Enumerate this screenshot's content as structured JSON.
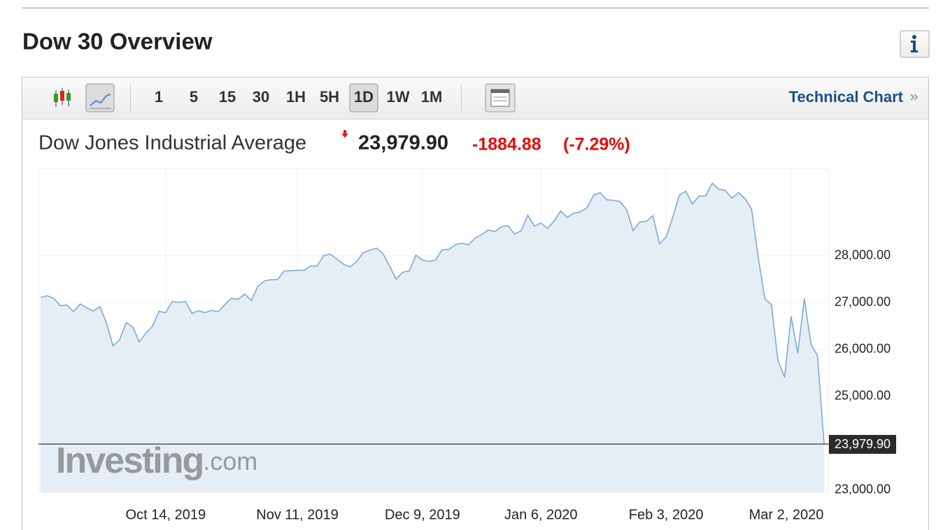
{
  "header": {
    "title": "Dow 30 Overview"
  },
  "toolbar": {
    "timeframes": [
      "1",
      "5",
      "15",
      "30",
      "1H",
      "5H",
      "1D",
      "1W",
      "1M"
    ],
    "selected_timeframe": 6,
    "link": "Technical Chart"
  },
  "quote": {
    "name": "Dow Jones Industrial Average",
    "price": "23,979.90",
    "change": "-1884.88",
    "change_pct": "(-7.29%)"
  },
  "chart_data": {
    "type": "area",
    "x": [
      "2019-09-17",
      "2019-09-18",
      "2019-09-19",
      "2019-09-20",
      "2019-09-23",
      "2019-09-24",
      "2019-09-25",
      "2019-09-26",
      "2019-09-27",
      "2019-09-30",
      "2019-10-01",
      "2019-10-02",
      "2019-10-03",
      "2019-10-04",
      "2019-10-07",
      "2019-10-08",
      "2019-10-09",
      "2019-10-10",
      "2019-10-11",
      "2019-10-14",
      "2019-10-15",
      "2019-10-16",
      "2019-10-17",
      "2019-10-18",
      "2019-10-21",
      "2019-10-22",
      "2019-10-23",
      "2019-10-24",
      "2019-10-25",
      "2019-10-28",
      "2019-10-29",
      "2019-10-30",
      "2019-10-31",
      "2019-11-01",
      "2019-11-04",
      "2019-11-05",
      "2019-11-06",
      "2019-11-07",
      "2019-11-08",
      "2019-11-11",
      "2019-11-12",
      "2019-11-13",
      "2019-11-14",
      "2019-11-15",
      "2019-11-18",
      "2019-11-19",
      "2019-11-20",
      "2019-11-21",
      "2019-11-22",
      "2019-11-25",
      "2019-11-26",
      "2019-11-27",
      "2019-11-29",
      "2019-12-02",
      "2019-12-03",
      "2019-12-04",
      "2019-12-05",
      "2019-12-06",
      "2019-12-09",
      "2019-12-10",
      "2019-12-11",
      "2019-12-12",
      "2019-12-13",
      "2019-12-16",
      "2019-12-17",
      "2019-12-18",
      "2019-12-19",
      "2019-12-20",
      "2019-12-23",
      "2019-12-24",
      "2019-12-26",
      "2019-12-27",
      "2019-12-30",
      "2019-12-31",
      "2020-01-02",
      "2020-01-03",
      "2020-01-06",
      "2020-01-07",
      "2020-01-08",
      "2020-01-09",
      "2020-01-10",
      "2020-01-13",
      "2020-01-14",
      "2020-01-15",
      "2020-01-16",
      "2020-01-17",
      "2020-01-21",
      "2020-01-22",
      "2020-01-23",
      "2020-01-24",
      "2020-01-27",
      "2020-01-28",
      "2020-01-29",
      "2020-01-30",
      "2020-01-31",
      "2020-02-03",
      "2020-02-04",
      "2020-02-05",
      "2020-02-06",
      "2020-02-07",
      "2020-02-10",
      "2020-02-11",
      "2020-02-12",
      "2020-02-13",
      "2020-02-14",
      "2020-02-18",
      "2020-02-19",
      "2020-02-20",
      "2020-02-21",
      "2020-02-24",
      "2020-02-25",
      "2020-02-26",
      "2020-02-27",
      "2020-02-28",
      "2020-03-02",
      "2020-03-03",
      "2020-03-04",
      "2020-03-05",
      "2020-03-06",
      "2020-03-09"
    ],
    "values": [
      27110,
      27147,
      27094,
      26935,
      26949,
      26808,
      26970,
      26891,
      26820,
      26917,
      26573,
      26078,
      26201,
      26573,
      26478,
      26164,
      26347,
      26497,
      26817,
      26787,
      27024,
      27002,
      27026,
      26770,
      26828,
      26788,
      26834,
      26806,
      26958,
      27091,
      27071,
      27186,
      27046,
      27347,
      27462,
      27492,
      27493,
      27675,
      27681,
      27691,
      27691,
      27784,
      27782,
      28005,
      28036,
      27934,
      27822,
      27767,
      27876,
      28066,
      28122,
      28164,
      28051,
      27783,
      27503,
      27650,
      27677,
      28015,
      27910,
      27881,
      27911,
      28132,
      28135,
      28235,
      28267,
      28239,
      28377,
      28455,
      28551,
      28516,
      28621,
      28645,
      28462,
      28538,
      28868,
      28634,
      28703,
      28583,
      28745,
      28957,
      28824,
      28907,
      28940,
      29030,
      29298,
      29348,
      29196,
      29186,
      29160,
      28990,
      28535,
      28723,
      28734,
      28859,
      28256,
      28400,
      28808,
      29291,
      29380,
      29103,
      29276,
      29276,
      29551,
      29424,
      29398,
      29232,
      29348,
      29220,
      28992,
      27961,
      27081,
      26958,
      25766,
      25409,
      26703,
      25917,
      27091,
      26121,
      25865,
      23979.9
    ],
    "color": "#7fa9d8",
    "fill": "#e5eef5",
    "ylim": [
      22950,
      29850
    ],
    "yticks": [
      {
        "value": 23000,
        "label": "23,000.00"
      },
      {
        "value": 25000,
        "label": "25,000.00"
      },
      {
        "value": 26000,
        "label": "26,000.00"
      },
      {
        "value": 27000,
        "label": "27,000.00"
      },
      {
        "value": 28000,
        "label": "28,000.00"
      }
    ],
    "xticks": [
      {
        "value": "2019-10-14",
        "label": "Oct 14, 2019"
      },
      {
        "value": "2019-11-11",
        "label": "Nov 11, 2019"
      },
      {
        "value": "2019-12-09",
        "label": "Dec 9, 2019"
      },
      {
        "value": "2020-01-06",
        "label": "Jan 6, 2020"
      },
      {
        "value": "2020-02-03",
        "label": "Feb 3, 2020"
      },
      {
        "value": "2020-03-02",
        "label": "Mar 2, 2020"
      }
    ],
    "grid": true,
    "watermark": {
      "brand": "Investing",
      "suffix": ".com"
    }
  }
}
